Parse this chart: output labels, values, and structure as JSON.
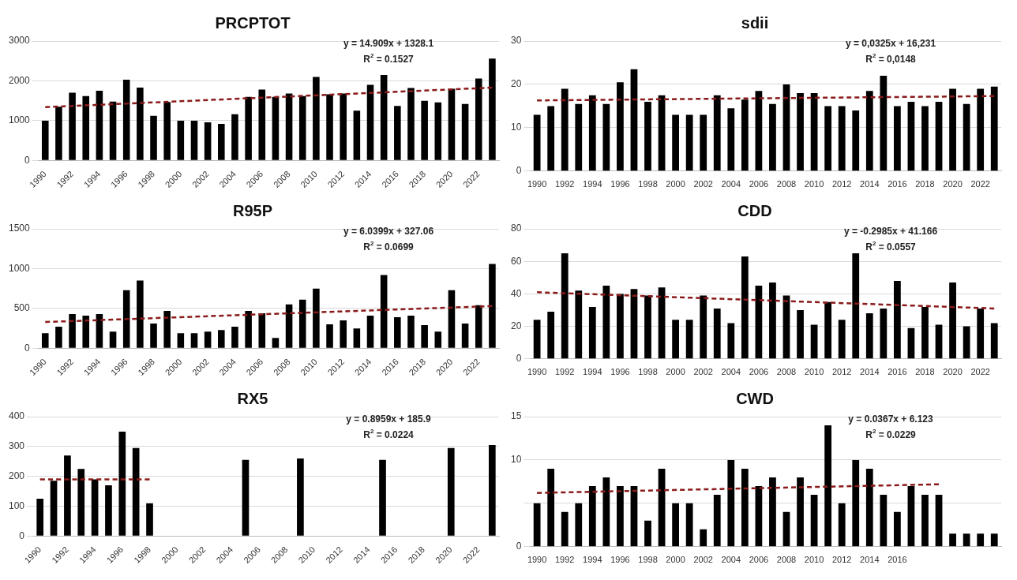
{
  "chart_data": [
    {
      "type": "bar",
      "title": "PRCPTOT",
      "categories": [
        "1990",
        null,
        "1992",
        null,
        "1994",
        null,
        "1996",
        null,
        "1998",
        null,
        "2000",
        null,
        "2002",
        null,
        "2004",
        null,
        "2006",
        null,
        "2008",
        null,
        "2010",
        null,
        "2012",
        null,
        "2014",
        null,
        "2016",
        null,
        "2018",
        null,
        "2020",
        null,
        "2022",
        null
      ],
      "series": [
        {
          "color": "#000000",
          "values": [
            1000,
            1350,
            1700,
            1620,
            1750,
            1480,
            2030,
            1830,
            1120,
            1470,
            1000,
            1000,
            960,
            920,
            1160,
            1600,
            1780,
            1600,
            1680,
            1620,
            2100,
            1660,
            1680,
            1250,
            1900,
            2150,
            1370,
            1820,
            1500,
            1460,
            1800,
            1420,
            2060,
            2560
          ]
        },
        {
          "type": "line",
          "color": "#8b1a1a",
          "line_style": "dashed",
          "marker": "none",
          "values": [
            1340,
            null,
            null,
            null,
            null,
            null,
            null,
            null,
            null,
            null,
            null,
            null,
            null,
            null,
            null,
            null,
            null,
            null,
            null,
            null,
            null,
            null,
            null,
            null,
            null,
            null,
            null,
            null,
            null,
            null,
            null,
            null,
            null,
            1830
          ]
        }
      ],
      "ylim": [
        0,
        3000
      ],
      "yticks": [
        0,
        1000,
        2000,
        3000
      ],
      "grid": "y",
      "annotations": [
        "y = 14.909x + 1328.1",
        "R$^{2}$ = 0.1527"
      ]
    },
    {
      "type": "bar",
      "title": "sdii",
      "categories": [
        "1990",
        null,
        "1992",
        null,
        "1994",
        null,
        "1996",
        null,
        "1998",
        null,
        "2000",
        null,
        "2002",
        null,
        "2004",
        null,
        "2006",
        null,
        "2008",
        null,
        "2010",
        null,
        "2012",
        null,
        "2014",
        null,
        "2016",
        null,
        "2018",
        null,
        "2020",
        null,
        "2022",
        null
      ],
      "series": [
        {
          "color": "#000000",
          "values": [
            13,
            15,
            19,
            15.5,
            17.5,
            15.5,
            20.5,
            23.5,
            16,
            17.5,
            13,
            13,
            13,
            17.5,
            14.5,
            16.5,
            18.5,
            15.5,
            20,
            18,
            18,
            15,
            15,
            14,
            18.5,
            22,
            15,
            16,
            15,
            16,
            19,
            15.5,
            19,
            19.5
          ]
        },
        {
          "type": "line",
          "color": "#8b1a1a",
          "line_style": "dashed",
          "marker": "none",
          "values": [
            16.3,
            null,
            null,
            null,
            null,
            null,
            null,
            null,
            null,
            null,
            null,
            null,
            null,
            null,
            null,
            null,
            null,
            null,
            null,
            null,
            null,
            null,
            null,
            null,
            null,
            null,
            null,
            null,
            null,
            null,
            null,
            null,
            null,
            17.3
          ]
        }
      ],
      "ylim": [
        0,
        30
      ],
      "yticks": [
        0,
        10,
        20,
        30
      ],
      "grid": "y",
      "annotations": [
        "y = 0,0325x + 16,231",
        "R$^{2}$ = 0,0148"
      ]
    },
    {
      "type": "bar",
      "title": "R95P",
      "categories": [
        "1990",
        null,
        "1992",
        null,
        "1994",
        null,
        "1996",
        null,
        "1998",
        null,
        "2000",
        null,
        "2002",
        null,
        "2004",
        null,
        "2006",
        null,
        "2008",
        null,
        "2010",
        null,
        "2012",
        null,
        "2014",
        null,
        "2016",
        null,
        "2018",
        null,
        "2020",
        null,
        "2022",
        null
      ],
      "series": [
        {
          "color": "#000000",
          "values": [
            190,
            270,
            430,
            410,
            430,
            210,
            730,
            850,
            310,
            470,
            190,
            190,
            210,
            230,
            270,
            470,
            440,
            130,
            550,
            610,
            750,
            300,
            350,
            250,
            410,
            920,
            390,
            410,
            290,
            210,
            730,
            310,
            540,
            1060
          ]
        },
        {
          "type": "line",
          "color": "#8b1a1a",
          "line_style": "dashed",
          "marker": "none",
          "values": [
            330,
            null,
            null,
            null,
            null,
            null,
            null,
            null,
            null,
            null,
            null,
            null,
            null,
            null,
            null,
            null,
            null,
            null,
            null,
            null,
            null,
            null,
            null,
            null,
            null,
            null,
            null,
            null,
            null,
            null,
            null,
            null,
            null,
            530
          ]
        }
      ],
      "ylim": [
        0,
        1500
      ],
      "yticks": [
        0,
        500,
        1000,
        1500
      ],
      "grid": "y",
      "annotations": [
        "y = 6.0399x + 327.06",
        "R$^{2}$ = 0.0699"
      ]
    },
    {
      "type": "bar",
      "title": "CDD",
      "categories": [
        "1990",
        null,
        "1992",
        null,
        "1994",
        null,
        "1996",
        null,
        "1998",
        null,
        "2000",
        null,
        "2002",
        null,
        "2004",
        null,
        "2006",
        null,
        "2008",
        null,
        "2010",
        null,
        "2012",
        null,
        "2014",
        null,
        "2016",
        null,
        "2018",
        null,
        "2020",
        null,
        "2022",
        null
      ],
      "series": [
        {
          "color": "#000000",
          "values": [
            24,
            29,
            65,
            42,
            32,
            45,
            40,
            43,
            39,
            44,
            24,
            24,
            39,
            31,
            22,
            63,
            45,
            47,
            39,
            30,
            21,
            35,
            24,
            65,
            28,
            31,
            48,
            19,
            32,
            21,
            47,
            20,
            31,
            22
          ]
        },
        {
          "type": "line",
          "color": "#8b1a1a",
          "line_style": "dashed",
          "marker": "none",
          "values": [
            41,
            null,
            null,
            null,
            null,
            null,
            null,
            null,
            null,
            null,
            null,
            null,
            null,
            null,
            null,
            null,
            null,
            null,
            null,
            null,
            null,
            null,
            null,
            null,
            null,
            null,
            null,
            null,
            null,
            null,
            null,
            null,
            null,
            31
          ]
        }
      ],
      "ylim": [
        0,
        80
      ],
      "yticks": [
        0,
        20,
        40,
        60,
        80
      ],
      "grid": "y",
      "annotations": [
        "y = -0.2985x + 41.166",
        "R$^{2}$ = 0.0557"
      ]
    },
    {
      "type": "bar",
      "title": "RX5",
      "categories": [
        "1990",
        null,
        "1992",
        null,
        "1994",
        null,
        "1996",
        null,
        "1998",
        null,
        "2000",
        null,
        "2002",
        null,
        "2004",
        null,
        "2006",
        null,
        "2008",
        null,
        "2010",
        null,
        "2012",
        null,
        "2014",
        null,
        "2016",
        null,
        "2018",
        null,
        "2020",
        null,
        "2022",
        null
      ],
      "series": [
        {
          "color": "#000000",
          "values": [
            125,
            185,
            270,
            225,
            190,
            170,
            350,
            295,
            110,
            null,
            null,
            null,
            null,
            null,
            null,
            255,
            null,
            null,
            null,
            260,
            null,
            null,
            null,
            null,
            null,
            255,
            null,
            null,
            null,
            null,
            295,
            null,
            null,
            305
          ]
        },
        {
          "type": "line",
          "color": "#8b1a1a",
          "line_style": "dashed",
          "marker": "none",
          "values": [
            190,
            null,
            null,
            null,
            null,
            null,
            null,
            null,
            190,
            null,
            null,
            null,
            null,
            null,
            null,
            null,
            null,
            null,
            null,
            null,
            null,
            null,
            null,
            null,
            null,
            null,
            null,
            null,
            null,
            null,
            null,
            null,
            null,
            null
          ]
        }
      ],
      "ylim": [
        0,
        400
      ],
      "yticks": [
        0,
        100,
        200,
        300,
        400
      ],
      "grid": "y",
      "annotations": [
        "y = 0.8959x + 185.9",
        "R$^{2}$ = 0.0224"
      ]
    },
    {
      "type": "bar",
      "title": "CWD",
      "categories": [
        "1990",
        null,
        "1992",
        null,
        "1994",
        null,
        "1996",
        null,
        "1998",
        null,
        "2000",
        null,
        "2002",
        null,
        "2004",
        null,
        "2006",
        null,
        "2008",
        null,
        "2010",
        null,
        "2012",
        null,
        "2014",
        null,
        "2016",
        null,
        null,
        null,
        null,
        null,
        null,
        null
      ],
      "series": [
        {
          "color": "#000000",
          "values": [
            5,
            9,
            4,
            5,
            7,
            8,
            7,
            7,
            3,
            9,
            5,
            5,
            2,
            6,
            10,
            9,
            7,
            8,
            4,
            8,
            6,
            14,
            5,
            10,
            9,
            6,
            4,
            7,
            6,
            6,
            1.5,
            1.5,
            1.5,
            1.5
          ]
        },
        {
          "type": "line",
          "color": "#8b1a1a",
          "line_style": "dashed",
          "marker": "none",
          "values": [
            6.2,
            null,
            null,
            null,
            null,
            null,
            null,
            null,
            null,
            null,
            null,
            null,
            null,
            null,
            null,
            null,
            null,
            null,
            null,
            null,
            null,
            null,
            null,
            null,
            null,
            null,
            null,
            null,
            null,
            7.2,
            null,
            null,
            null,
            null
          ]
        }
      ],
      "ylim": [
        0,
        15
      ],
      "yticks": [
        0,
        {
          "value": 5,
          "label": null
        },
        10,
        15
      ],
      "grid": "y",
      "annotations": [
        "y = 0.0367x + 6.123",
        "R$^{2}$ = 0.0229"
      ]
    }
  ]
}
